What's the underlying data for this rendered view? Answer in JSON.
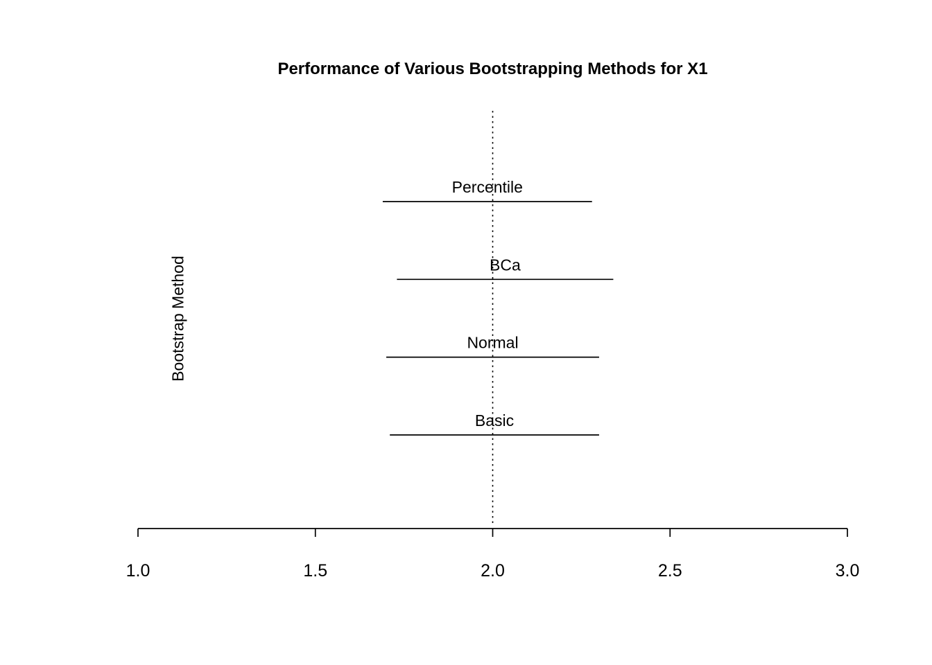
{
  "chart_data": {
    "type": "interval",
    "title": "Performance of Various Bootstrapping Methods for X1",
    "xlabel": "",
    "ylabel": "Bootstrap Method",
    "xlim": [
      1.0,
      3.0
    ],
    "x_ticks": [
      1.0,
      1.5,
      2.0,
      2.5,
      3.0
    ],
    "x_tick_labels": [
      "1.0",
      "1.5",
      "2.0",
      "2.5",
      "3.0"
    ],
    "reference_line": {
      "x": 2.0,
      "style": "dotted"
    },
    "series": [
      {
        "name": "Percentile",
        "lower": 1.69,
        "upper": 2.28
      },
      {
        "name": "BCa",
        "lower": 1.73,
        "upper": 2.34
      },
      {
        "name": "Normal",
        "lower": 1.7,
        "upper": 2.3
      },
      {
        "name": "Basic",
        "lower": 1.71,
        "upper": 2.3
      }
    ],
    "grid": false,
    "legend": false,
    "colors": {
      "foreground": "#000000",
      "background": "#ffffff"
    }
  }
}
